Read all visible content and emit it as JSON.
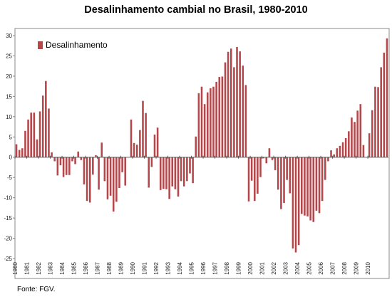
{
  "source_note": "Fonte: FGV.",
  "chart_data": {
    "type": "bar",
    "title": "Desalinhamento cambial no Brasil, 1980-2010",
    "xlabel": "",
    "ylabel": "",
    "ylim": [
      -25,
      30
    ],
    "y_ticks": [
      30,
      25,
      20,
      15,
      10,
      5,
      0,
      -5,
      -10,
      -15,
      -20,
      -25
    ],
    "x_ticks": [
      "1980",
      "1981",
      "1982",
      "1983",
      "1984",
      "1985",
      "1986",
      "1987",
      "1988",
      "1989",
      "1990",
      "1991",
      "1992",
      "1993",
      "1994",
      "1995",
      "1996",
      "1997",
      "1998",
      "1999",
      "2000",
      "2001",
      "2002",
      "2003",
      "2004",
      "2005",
      "2006",
      "2007",
      "2008",
      "2009",
      "2010"
    ],
    "grid": false,
    "legend_position": "top-left",
    "color": "#b5474b",
    "series": [
      {
        "name": "Desalinhamento",
        "values": [
          3.2,
          1.8,
          2.2,
          6.5,
          9.3,
          11.0,
          11.0,
          4.4,
          11.3,
          15.2,
          18.8,
          12.0,
          1.2,
          -1.0,
          -4.5,
          -2.0,
          -4.9,
          -4.4,
          -4.4,
          -1.0,
          -1.7,
          1.4,
          -0.7,
          -6.7,
          -10.8,
          -11.2,
          -4.3,
          0.5,
          -8.0,
          3.6,
          -5.9,
          -10.4,
          -9.5,
          -13.4,
          -11.0,
          -7.6,
          -3.7,
          -7.0,
          0.0,
          9.3,
          3.5,
          3.1,
          6.7,
          13.9,
          10.9,
          -7.5,
          -2.4,
          5.6,
          7.3,
          -8.1,
          -7.8,
          -7.9,
          -10.3,
          -7.2,
          -7.9,
          -9.7,
          -5.9,
          -7.2,
          -5.9,
          -4.0,
          -6.4,
          5.1,
          15.8,
          17.4,
          13.1,
          16.0,
          17.0,
          17.4,
          18.6,
          19.8,
          19.9,
          23.4,
          26.0,
          26.8,
          22.2,
          27.2,
          26.1,
          22.6,
          17.8,
          -10.9,
          -5.8,
          -10.8,
          -9.0,
          -4.9,
          -0.3,
          -1.5,
          2.2,
          -0.7,
          -3.2,
          -8.0,
          -12.8,
          -11.3,
          -5.6,
          -8.9,
          -22.5,
          -23.5,
          -21.7,
          -14.0,
          -14.4,
          -14.6,
          -15.6,
          -16.0,
          -13.2,
          -13.8,
          -10.8,
          -5.6,
          -1.0,
          1.7,
          0.7,
          2.2,
          2.8,
          3.7,
          4.7,
          6.4,
          9.8,
          8.7,
          11.5,
          13.1,
          3.0,
          0.0,
          5.9,
          11.6,
          17.4,
          17.3,
          22.2,
          25.8,
          29.3
        ]
      }
    ]
  }
}
